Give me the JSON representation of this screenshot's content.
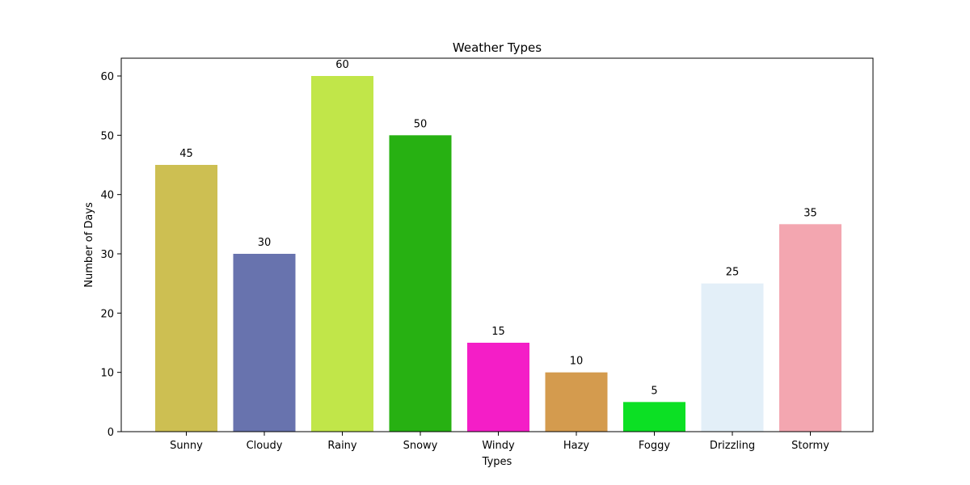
{
  "chart_data": {
    "type": "bar",
    "title": "Weather Types",
    "xlabel": "Types",
    "ylabel": "Number of Days",
    "categories": [
      "Sunny",
      "Cloudy",
      "Rainy",
      "Snowy",
      "Windy",
      "Hazy",
      "Foggy",
      "Drizzling",
      "Stormy"
    ],
    "values": [
      45,
      30,
      60,
      50,
      15,
      10,
      5,
      25,
      35
    ],
    "colors": [
      "#cdbf52",
      "#6873ae",
      "#c1e649",
      "#27b112",
      "#f41ec7",
      "#d49b4e",
      "#0ce024",
      "#e3eff8",
      "#f3a6b0"
    ],
    "ylim": [
      0,
      63
    ],
    "yticks": [
      0,
      10,
      20,
      30,
      40,
      50,
      60
    ],
    "grid": false,
    "legend": "none"
  }
}
